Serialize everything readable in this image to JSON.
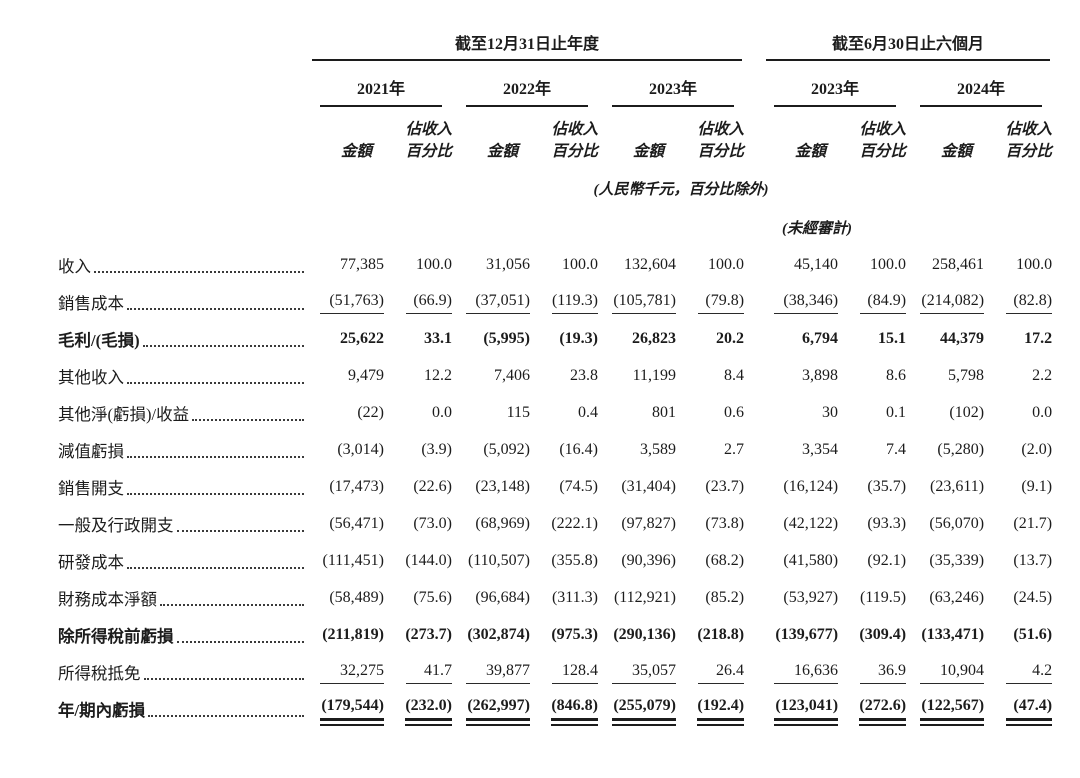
{
  "table": {
    "period_groups": [
      {
        "label": "截至12月31日止年度",
        "years": [
          "2021年",
          "2022年",
          "2023年"
        ]
      },
      {
        "label": "截至6月30日止六個月",
        "years": [
          "2023年",
          "2024年"
        ]
      }
    ],
    "subheader": {
      "amount": "金額",
      "pct_line1": "佔收入",
      "pct_line2": "百分比"
    },
    "notes": {
      "currency": "(人民幣千元，百分比除外)",
      "unaudited": "(未經審計)"
    },
    "rows": [
      {
        "label": "收入",
        "bold": false,
        "rule": "none",
        "values": [
          "77,385",
          "100.0",
          "31,056",
          "100.0",
          "132,604",
          "100.0",
          "45,140",
          "100.0",
          "258,461",
          "100.0"
        ]
      },
      {
        "label": "銷售成本",
        "bold": false,
        "rule": "single",
        "values": [
          "(51,763)",
          "(66.9)",
          "(37,051)",
          "(119.3)",
          "(105,781)",
          "(79.8)",
          "(38,346)",
          "(84.9)",
          "(214,082)",
          "(82.8)"
        ]
      },
      {
        "label": "毛利/(毛損)",
        "bold": true,
        "rule": "none",
        "values": [
          "25,622",
          "33.1",
          "(5,995)",
          "(19.3)",
          "26,823",
          "20.2",
          "6,794",
          "15.1",
          "44,379",
          "17.2"
        ]
      },
      {
        "label": "其他收入",
        "bold": false,
        "rule": "none",
        "values": [
          "9,479",
          "12.2",
          "7,406",
          "23.8",
          "11,199",
          "8.4",
          "3,898",
          "8.6",
          "5,798",
          "2.2"
        ]
      },
      {
        "label": "其他淨(虧損)/收益",
        "bold": false,
        "rule": "none",
        "values": [
          "(22)",
          "0.0",
          "115",
          "0.4",
          "801",
          "0.6",
          "30",
          "0.1",
          "(102)",
          "0.0"
        ]
      },
      {
        "label": "減值虧損",
        "bold": false,
        "rule": "none",
        "values": [
          "(3,014)",
          "(3.9)",
          "(5,092)",
          "(16.4)",
          "3,589",
          "2.7",
          "3,354",
          "7.4",
          "(5,280)",
          "(2.0)"
        ]
      },
      {
        "label": "銷售開支",
        "bold": false,
        "rule": "none",
        "values": [
          "(17,473)",
          "(22.6)",
          "(23,148)",
          "(74.5)",
          "(31,404)",
          "(23.7)",
          "(16,124)",
          "(35.7)",
          "(23,611)",
          "(9.1)"
        ]
      },
      {
        "label": "一般及行政開支",
        "bold": false,
        "rule": "none",
        "values": [
          "(56,471)",
          "(73.0)",
          "(68,969)",
          "(222.1)",
          "(97,827)",
          "(73.8)",
          "(42,122)",
          "(93.3)",
          "(56,070)",
          "(21.7)"
        ]
      },
      {
        "label": "研發成本",
        "bold": false,
        "rule": "none",
        "values": [
          "(111,451)",
          "(144.0)",
          "(110,507)",
          "(355.8)",
          "(90,396)",
          "(68.2)",
          "(41,580)",
          "(92.1)",
          "(35,339)",
          "(13.7)"
        ]
      },
      {
        "label": "財務成本淨額",
        "bold": false,
        "rule": "none",
        "values": [
          "(58,489)",
          "(75.6)",
          "(96,684)",
          "(311.3)",
          "(112,921)",
          "(85.2)",
          "(53,927)",
          "(119.5)",
          "(63,246)",
          "(24.5)"
        ]
      },
      {
        "label": "除所得稅前虧損",
        "bold": true,
        "rule": "none",
        "values": [
          "(211,819)",
          "(273.7)",
          "(302,874)",
          "(975.3)",
          "(290,136)",
          "(218.8)",
          "(139,677)",
          "(309.4)",
          "(133,471)",
          "(51.6)"
        ]
      },
      {
        "label": "所得稅抵免",
        "bold": false,
        "rule": "single",
        "values": [
          "32,275",
          "41.7",
          "39,877",
          "128.4",
          "35,057",
          "26.4",
          "16,636",
          "36.9",
          "10,904",
          "4.2"
        ]
      },
      {
        "label": "年/期內虧損",
        "bold": true,
        "rule": "double",
        "values": [
          "(179,544)",
          "(232.0)",
          "(262,997)",
          "(846.8)",
          "(255,079)",
          "(192.4)",
          "(123,041)",
          "(272.6)",
          "(122,567)",
          "(47.4)"
        ]
      }
    ]
  }
}
